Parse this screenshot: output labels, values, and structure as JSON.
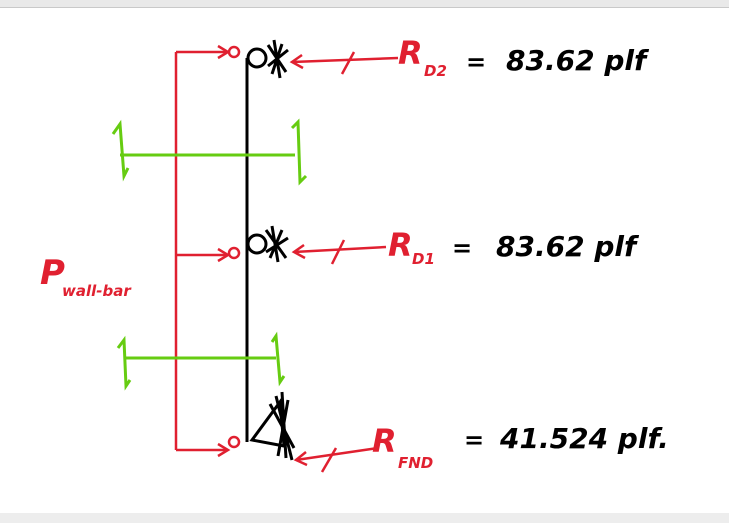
{
  "colors": {
    "wall": "#000000",
    "reactions": "#e02030",
    "spans": "#66cc11",
    "values": "#000000"
  },
  "wall_pressure_label": {
    "symbol": "P",
    "subscript": "wall-bar"
  },
  "reactions": [
    {
      "symbol": "R",
      "subscript": "D2",
      "equals": "=",
      "value": "83.62 plf"
    },
    {
      "symbol": "R",
      "subscript": "D1",
      "equals": "=",
      "value": "83.62 plf"
    },
    {
      "symbol": "R",
      "subscript": "FND",
      "equals": "=",
      "value": "41.524 plf."
    }
  ]
}
